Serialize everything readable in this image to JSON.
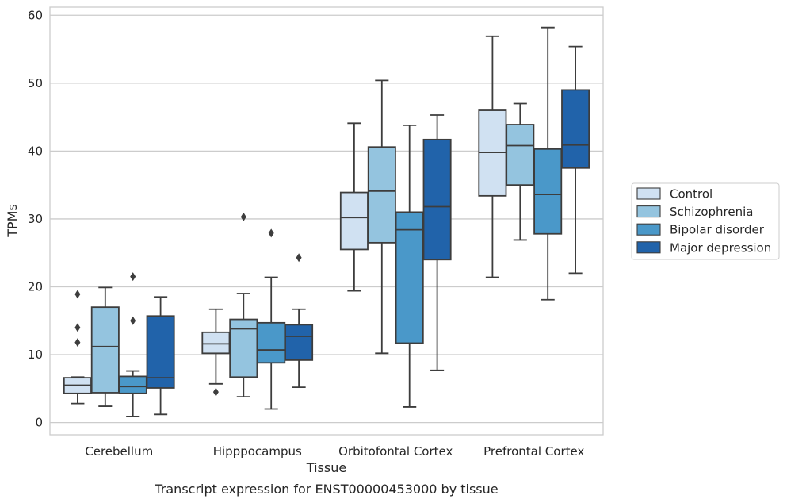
{
  "chart_data": {
    "type": "box",
    "title": "Transcript expression for ENST00000453000 by tissue",
    "xlabel": "Tissue",
    "ylabel": "TPMs",
    "ylim": [
      -1.8,
      61.2
    ],
    "yticks": [
      0,
      10,
      20,
      30,
      40,
      50,
      60
    ],
    "grid": true,
    "legend_position": "right",
    "categories": [
      "Cerebellum",
      "Hipppocampus",
      "Orbitofontal Cortex",
      "Prefrontal Cortex"
    ],
    "series": [
      {
        "name": "Control",
        "color": "#d0e1f2",
        "boxes": [
          {
            "whisker_low": 2.8,
            "q1": 4.3,
            "median": 5.5,
            "q3": 6.6,
            "whisker_high": 6.7,
            "outliers": [
              11.8,
              14.0,
              18.9
            ]
          },
          {
            "whisker_low": 5.7,
            "q1": 10.2,
            "median": 11.6,
            "q3": 13.3,
            "whisker_high": 16.7,
            "outliers": [
              4.5
            ]
          },
          {
            "whisker_low": 19.4,
            "q1": 25.5,
            "median": 30.2,
            "q3": 33.9,
            "whisker_high": 44.1,
            "outliers": []
          },
          {
            "whisker_low": 21.4,
            "q1": 33.4,
            "median": 39.8,
            "q3": 46.0,
            "whisker_high": 56.9,
            "outliers": []
          }
        ]
      },
      {
        "name": "Schizophrenia",
        "color": "#94c4df",
        "boxes": [
          {
            "whisker_low": 2.4,
            "q1": 4.4,
            "median": 11.2,
            "q3": 17.0,
            "whisker_high": 19.9,
            "outliers": []
          },
          {
            "whisker_low": 3.8,
            "q1": 6.7,
            "median": 13.8,
            "q3": 15.2,
            "whisker_high": 19.0,
            "outliers": [
              30.3
            ]
          },
          {
            "whisker_low": 10.2,
            "q1": 26.5,
            "median": 34.1,
            "q3": 40.6,
            "whisker_high": 50.4,
            "outliers": []
          },
          {
            "whisker_low": 26.9,
            "q1": 35.0,
            "median": 40.8,
            "q3": 43.9,
            "whisker_high": 47.0,
            "outliers": []
          }
        ]
      },
      {
        "name": "Bipolar disorder",
        "color": "#4a98c9",
        "boxes": [
          {
            "whisker_low": 0.9,
            "q1": 4.3,
            "median": 5.3,
            "q3": 6.8,
            "whisker_high": 7.6,
            "outliers": [
              15.0,
              21.5
            ]
          },
          {
            "whisker_low": 2.0,
            "q1": 8.8,
            "median": 10.7,
            "q3": 14.7,
            "whisker_high": 21.4,
            "outliers": [
              27.9
            ]
          },
          {
            "whisker_low": 2.3,
            "q1": 11.7,
            "median": 28.4,
            "q3": 31.0,
            "whisker_high": 43.8,
            "outliers": []
          },
          {
            "whisker_low": 18.1,
            "q1": 27.8,
            "median": 33.6,
            "q3": 40.3,
            "whisker_high": 58.2,
            "outliers": []
          }
        ]
      },
      {
        "name": "Major depression",
        "color": "#2163aa",
        "boxes": [
          {
            "whisker_low": 1.2,
            "q1": 5.1,
            "median": 6.6,
            "q3": 15.7,
            "whisker_high": 18.5,
            "outliers": []
          },
          {
            "whisker_low": 5.2,
            "q1": 9.2,
            "median": 12.7,
            "q3": 14.4,
            "whisker_high": 16.7,
            "outliers": [
              24.3
            ]
          },
          {
            "whisker_low": 7.7,
            "q1": 24.0,
            "median": 31.8,
            "q3": 41.7,
            "whisker_high": 45.3,
            "outliers": []
          },
          {
            "whisker_low": 22.0,
            "q1": 37.5,
            "median": 40.9,
            "q3": 49.0,
            "whisker_high": 55.4,
            "outliers": []
          }
        ]
      }
    ]
  }
}
